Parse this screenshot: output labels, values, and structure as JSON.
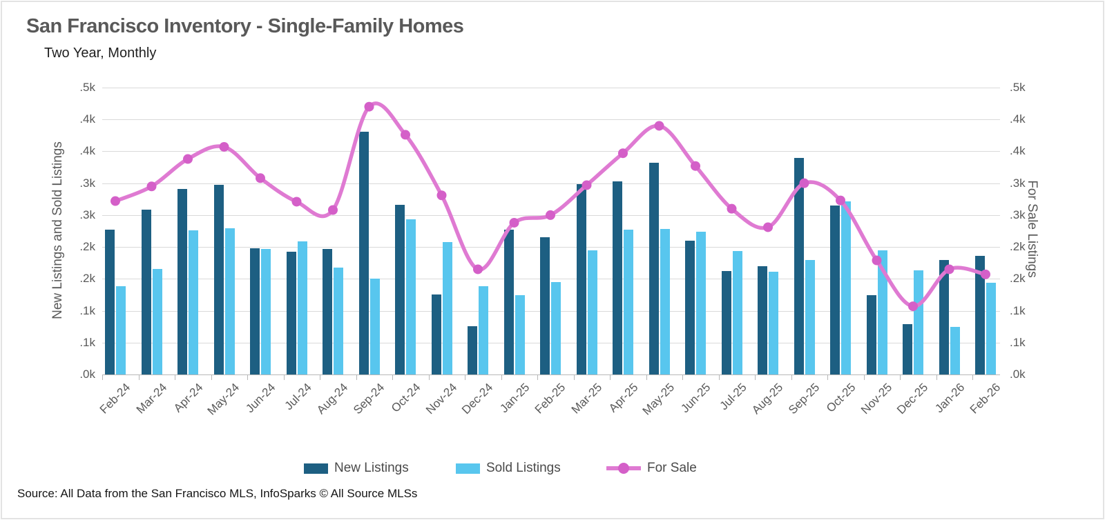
{
  "header": {
    "title": "San Francisco Inventory - Single-Family Homes",
    "subtitle": "Two Year, Monthly"
  },
  "source_note": "Source: All Data from the San Francisco MLS, InfoSparks © All Source MLSs",
  "legend": [
    {
      "label": "New Listings",
      "color": "#1d5f82",
      "type": "bar"
    },
    {
      "label": "Sold Listings",
      "color": "#58c6ee",
      "type": "bar"
    },
    {
      "label": "For Sale",
      "color": "#df7ad2",
      "type": "line"
    }
  ],
  "axes": {
    "left_title": "New Listings and Sold Listings",
    "right_title": "For Sale Listings",
    "y_tick_labels_top_to_bottom": [
      ".5k",
      ".4k",
      ".4k",
      ".3k",
      ".3k",
      ".2k",
      ".2k",
      ".1k",
      ".1k",
      ".0k"
    ],
    "y_gridline_values": [
      450,
      400,
      350,
      300,
      250,
      200,
      150,
      100,
      50,
      0
    ]
  },
  "colors": {
    "new_listings": "#1d5f82",
    "sold_listings": "#58c6ee",
    "for_sale_line": "#df7ad2",
    "for_sale_dot": "#d45fc8",
    "gridline": "#d9d9d9",
    "text_gray": "#595959"
  },
  "chart_data": {
    "type": "bar",
    "title": "San Francisco Inventory - Single-Family Homes",
    "subtitle": "Two Year, Monthly",
    "xlabel": "",
    "ylabel_left": "New Listings and Sold Listings",
    "ylabel_right": "For Sale Listings",
    "ylim": [
      0,
      450
    ],
    "y_step": 50,
    "grid": true,
    "legend_position": "bottom",
    "categories": [
      "Feb-24",
      "Mar-24",
      "Apr-24",
      "May-24",
      "Jun-24",
      "Jul-24",
      "Aug-24",
      "Sep-24",
      "Oct-24",
      "Nov-24",
      "Dec-24",
      "Jan-25",
      "Feb-25",
      "Mar-25",
      "Apr-25",
      "May-25",
      "Jun-25",
      "Jul-25",
      "Aug-25",
      "Sep-25",
      "Oct-25",
      "Nov-25",
      "Dec-25",
      "Jan-26",
      "Feb-26"
    ],
    "series": [
      {
        "name": "New Listings",
        "type": "bar",
        "axis": "left",
        "values": [
          227,
          259,
          291,
          297,
          198,
          193,
          197,
          381,
          266,
          125,
          76,
          227,
          215,
          299,
          303,
          332,
          210,
          162,
          170,
          340,
          265,
          124,
          79,
          180,
          186
        ]
      },
      {
        "name": "Sold Listings",
        "type": "bar",
        "axis": "left",
        "values": [
          139,
          165,
          226,
          229,
          197,
          209,
          168,
          150,
          243,
          208,
          138,
          124,
          145,
          195,
          227,
          228,
          224,
          194,
          161,
          180,
          272,
          195,
          163,
          75,
          144
        ]
      },
      {
        "name": "For Sale",
        "type": "line",
        "axis": "right",
        "values": [
          272,
          295,
          338,
          357,
          308,
          271,
          258,
          420,
          376,
          281,
          165,
          238,
          250,
          297,
          347,
          390,
          327,
          260,
          231,
          300,
          273,
          179,
          107,
          165,
          157
        ]
      }
    ]
  }
}
